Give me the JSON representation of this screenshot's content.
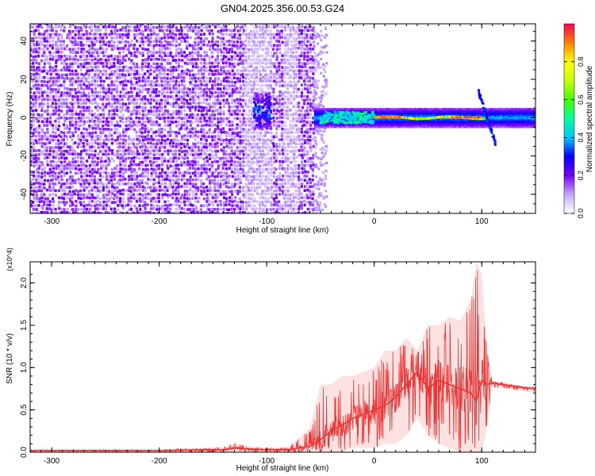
{
  "title": "GN04.2025.356.00.53.G24",
  "chart_data": [
    {
      "type": "heatmap",
      "xlabel": "Height of straight line (km)",
      "ylabel": "Frequency (Hz)",
      "xlim": [
        -320,
        150
      ],
      "ylim": [
        -50,
        49
      ],
      "xticks": [
        -300,
        -200,
        -100,
        0,
        100
      ],
      "yticks": [
        -40,
        -20,
        0,
        20,
        40
      ],
      "colorbar": {
        "label": "Normalized spectral amplitude",
        "range": [
          0.0,
          1.0
        ],
        "ticks": [
          "0.0",
          "0.2",
          "0.4",
          "0.6",
          "0.8"
        ]
      },
      "regions": [
        {
          "x": [
            -320,
            -55
          ],
          "y": [
            -50,
            49
          ],
          "amplitude": 0.15,
          "pattern": "broadband noise"
        },
        {
          "x": [
            -112,
            -96
          ],
          "y": [
            -6,
            13
          ],
          "amplitude": 0.3,
          "pattern": "cluster"
        },
        {
          "x": [
            -55,
            150
          ],
          "y": [
            -5,
            5
          ],
          "amplitude": 0.3,
          "pattern": "narrow band"
        },
        {
          "x": [
            -50,
            0
          ],
          "y": [
            -3,
            3
          ],
          "amplitude": 0.4,
          "pattern": "cyan/green speckle"
        },
        {
          "x": [
            0,
            105
          ],
          "y": [
            -1.5,
            1.5
          ],
          "amplitude": 0.85,
          "pattern": "red core"
        },
        {
          "x": [
            97,
            113
          ],
          "y": [
            -15,
            12
          ],
          "amplitude": 0.3,
          "pattern": "spike"
        }
      ]
    },
    {
      "type": "line",
      "xlabel": "Height of straight line (km)",
      "ylabel": "SNR (10 * v/v)",
      "yscale_label": "(x10^4)",
      "xlim": [
        -320,
        150
      ],
      "ylim": [
        0,
        2.25
      ],
      "xticks": [
        -300,
        -200,
        -100,
        0,
        100
      ],
      "yticks": [
        0.0,
        0.5,
        1.0,
        1.5,
        2.0
      ],
      "color": "#ee3333",
      "x": [
        -320,
        -200,
        -140,
        -130,
        -120,
        -100,
        -80,
        -60,
        -50,
        -40,
        -30,
        -20,
        -10,
        0,
        10,
        20,
        30,
        40,
        50,
        60,
        70,
        80,
        90,
        95,
        100,
        105,
        110,
        120,
        130,
        140,
        150
      ],
      "y": [
        0.02,
        0.02,
        0.03,
        0.05,
        0.04,
        0.03,
        0.03,
        0.07,
        0.15,
        0.25,
        0.32,
        0.4,
        0.45,
        0.5,
        0.55,
        0.65,
        0.8,
        0.95,
        0.75,
        0.85,
        0.8,
        0.75,
        0.7,
        0.6,
        0.85,
        0.8,
        0.82,
        0.8,
        0.78,
        0.76,
        0.75
      ],
      "y_max": [
        0.03,
        0.03,
        0.06,
        0.11,
        0.08,
        0.05,
        0.06,
        0.28,
        0.8,
        0.8,
        0.9,
        0.9,
        0.95,
        1.0,
        1.2,
        1.2,
        1.35,
        1.2,
        1.5,
        1.5,
        1.6,
        1.55,
        1.8,
        2.25,
        2.1,
        1.2,
        0.85,
        0.83,
        0.8,
        0.78,
        0.77
      ],
      "y_min": [
        0.0,
        0.0,
        0.0,
        0.01,
        0.0,
        0.0,
        0.0,
        0.0,
        0.0,
        0.0,
        0.0,
        0.05,
        0.05,
        0.05,
        0.1,
        0.1,
        0.2,
        0.4,
        0.2,
        0.1,
        0.05,
        0.0,
        0.0,
        0.0,
        0.0,
        0.3,
        0.76,
        0.76,
        0.74,
        0.72,
        0.71
      ]
    }
  ]
}
